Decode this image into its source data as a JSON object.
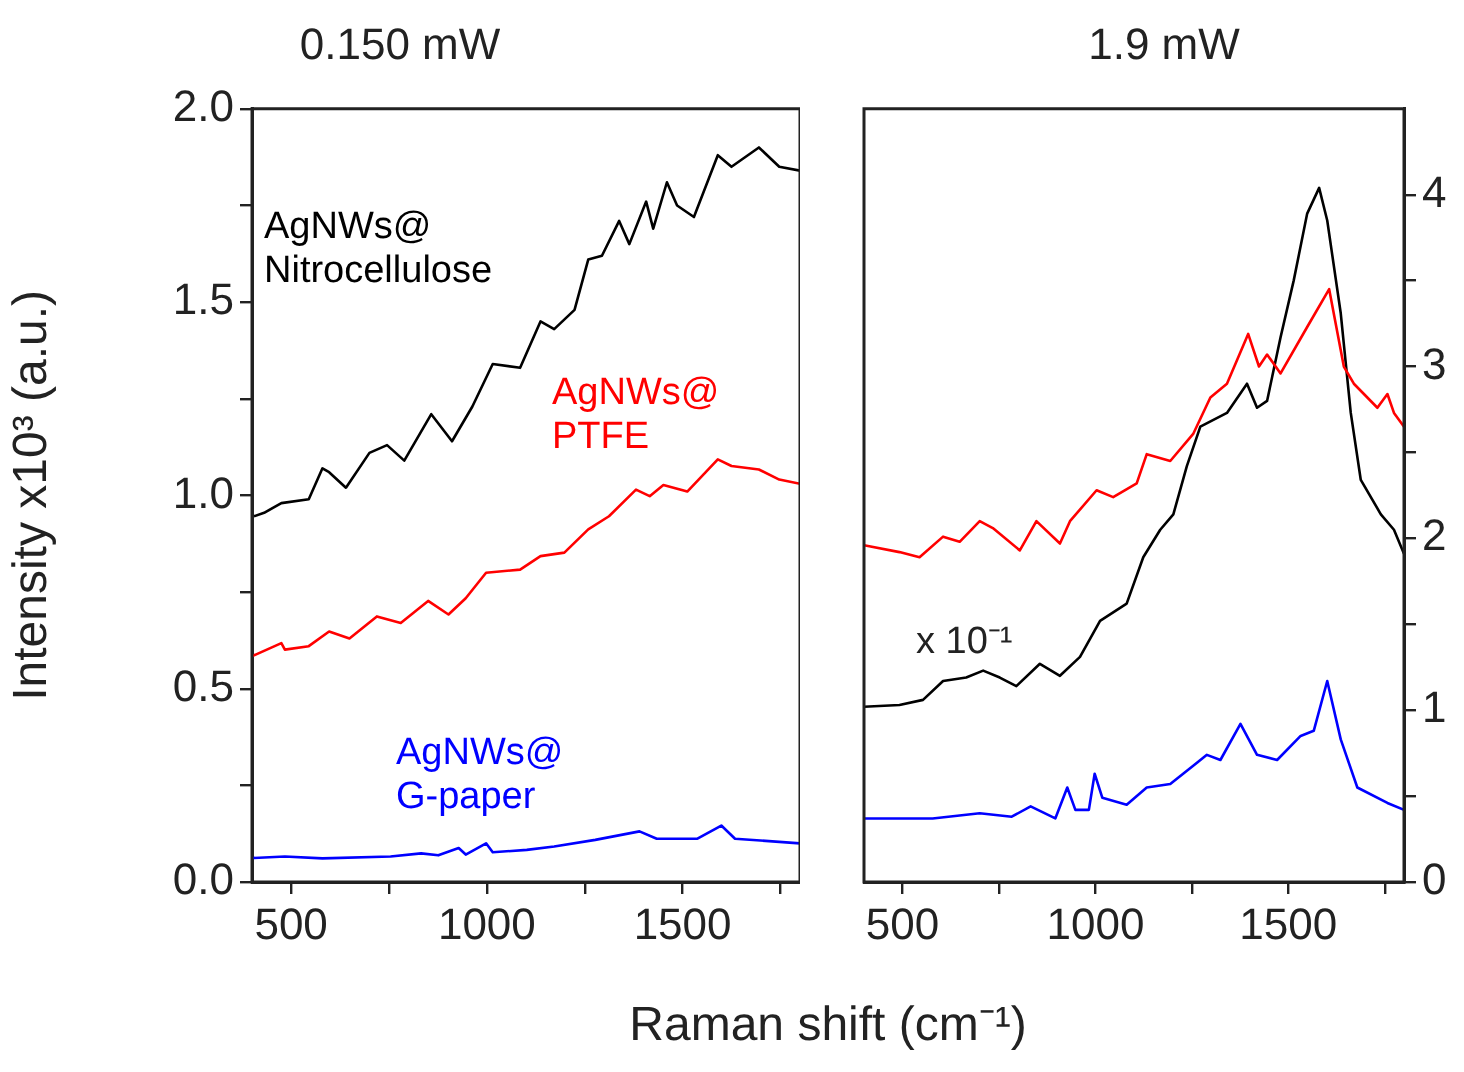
{
  "chart_data": [
    {
      "type": "line",
      "title": "0.150 mW",
      "ylabel": "Intensity x10³ (a.u.)",
      "xlabel": "Raman shift (cm⁻¹)",
      "xlim": [
        400,
        1800
      ],
      "xticks": [
        500,
        {
          "value": 750,
          "label": null
        },
        1000,
        {
          "value": 1250,
          "label": null
        },
        1500,
        {
          "value": 1750,
          "label": null
        }
      ],
      "ylim": [
        0,
        2
      ],
      "yticks": [
        {
          "value": 0,
          "label": "0.0"
        },
        {
          "value": 0.25,
          "label": null
        },
        {
          "value": 0.5,
          "label": "0.5"
        },
        {
          "value": 0.75,
          "label": null
        },
        {
          "value": 1,
          "label": "1.0"
        },
        {
          "value": 1.25,
          "label": null
        },
        {
          "value": 1.5,
          "label": "1.5"
        },
        {
          "value": 1.75,
          "label": null
        },
        {
          "value": 2,
          "label": "2.0"
        }
      ],
      "grid": false,
      "legend": false,
      "marker": "none",
      "line_style": "solid",
      "series": [
        {
          "name": "AgNWs@ Nitrocellulose",
          "color": "#000000",
          "x": [
            405,
            431,
            475,
            545,
            580,
            597,
            640,
            700,
            745,
            789,
            858,
            911,
            963,
            1015,
            1085,
            1137,
            1172,
            1224,
            1259,
            1294,
            1338,
            1364,
            1407,
            1425,
            1460,
            1486,
            1529,
            1590,
            1625,
            1695,
            1747,
            1800
          ],
          "values": [
            0.946,
            0.955,
            0.98,
            0.99,
            1.07,
            1.06,
            1.02,
            1.11,
            1.13,
            1.09,
            1.21,
            1.14,
            1.23,
            1.34,
            1.33,
            1.45,
            1.43,
            1.48,
            1.61,
            1.62,
            1.71,
            1.65,
            1.76,
            1.69,
            1.81,
            1.75,
            1.72,
            1.88,
            1.85,
            1.9,
            1.85,
            1.84
          ]
        },
        {
          "name": "AgNWs@ PTFE",
          "color": "#ff0000",
          "x": [
            400,
            475,
            484,
            545,
            597,
            649,
            719,
            780,
            850,
            902,
            946,
            998,
            1085,
            1137,
            1198,
            1259,
            1312,
            1381,
            1416,
            1451,
            1512,
            1590,
            1625,
            1695,
            1747,
            1800
          ],
          "values": [
            0.584,
            0.618,
            0.601,
            0.61,
            0.648,
            0.63,
            0.687,
            0.67,
            0.727,
            0.692,
            0.734,
            0.8,
            0.808,
            0.843,
            0.852,
            0.912,
            0.946,
            1.015,
            0.998,
            1.027,
            1.01,
            1.093,
            1.076,
            1.067,
            1.041,
            1.03
          ]
        },
        {
          "name": "AgNWs@ G-paper",
          "color": "#0000ff",
          "x": [
            400,
            484,
            580,
            754,
            832,
            876,
            928,
            946,
            998,
            1015,
            1102,
            1172,
            1277,
            1390,
            1434,
            1538,
            1599,
            1634,
            1800
          ],
          "values": [
            0.062,
            0.066,
            0.061,
            0.066,
            0.074,
            0.069,
            0.088,
            0.071,
            0.1,
            0.077,
            0.083,
            0.092,
            0.109,
            0.131,
            0.112,
            0.112,
            0.146,
            0.112,
            0.1
          ]
        }
      ]
    },
    {
      "type": "line",
      "title": "1.9 mW",
      "xlim": [
        400,
        1800
      ],
      "xticks": [
        500,
        {
          "value": 750,
          "label": null
        },
        1000,
        {
          "value": 1250,
          "label": null
        },
        1500,
        {
          "value": 1750,
          "label": null
        }
      ],
      "y2lim": [
        0,
        4.5
      ],
      "y2ticks": [
        0,
        {
          "value": 0.5,
          "label": null
        },
        1,
        {
          "value": 1.5,
          "label": null
        },
        2,
        {
          "value": 2.5,
          "label": null
        },
        3,
        {
          "value": 3.5,
          "label": null
        },
        4
      ],
      "grid": false,
      "legend": false,
      "marker": "none",
      "line_style": "solid",
      "annotations": [
        "x 10⁻¹"
      ],
      "series": [
        {
          "color": "#ff0000",
          "axis": "y2",
          "x": [
            400,
            492,
            544,
            605,
            648,
            700,
            734,
            804,
            847,
            908,
            934,
            1003,
            1046,
            1107,
            1133,
            1194,
            1254,
            1298,
            1341,
            1396,
            1424,
            1445,
            1480,
            1549,
            1606,
            1644,
            1670,
            1731,
            1757,
            1774,
            1800
          ],
          "values": [
            1.96,
            1.92,
            1.89,
            2.01,
            1.98,
            2.1,
            2.06,
            1.93,
            2.1,
            1.97,
            2.1,
            2.28,
            2.24,
            2.32,
            2.49,
            2.45,
            2.61,
            2.82,
            2.9,
            3.19,
            3.0,
            3.07,
            2.96,
            3.23,
            3.45,
            3.0,
            2.9,
            2.76,
            2.84,
            2.73,
            2.65
          ]
        },
        {
          "color": "#000000",
          "axis": "y2",
          "x": [
            400,
            492,
            553,
            605,
            665,
            709,
            752,
            795,
            856,
            908,
            960,
            1012,
            1081,
            1124,
            1168,
            1202,
            1237,
            1272,
            1341,
            1393,
            1419,
            1445,
            1480,
            1514,
            1549,
            1580,
            1601,
            1636,
            1662,
            1688,
            1740,
            1774,
            1800
          ],
          "values": [
            1.02,
            1.03,
            1.06,
            1.17,
            1.19,
            1.23,
            1.19,
            1.14,
            1.27,
            1.2,
            1.31,
            1.52,
            1.62,
            1.89,
            2.05,
            2.14,
            2.42,
            2.65,
            2.73,
            2.9,
            2.76,
            2.8,
            3.17,
            3.5,
            3.89,
            4.04,
            3.85,
            3.31,
            2.73,
            2.34,
            2.14,
            2.05,
            1.91
          ]
        },
        {
          "color": "#0000ff",
          "axis": "y2",
          "x": [
            400,
            578,
            700,
            783,
            832,
            896,
            927,
            948,
            983,
            998,
            1018,
            1081,
            1133,
            1194,
            1289,
            1324,
            1376,
            1419,
            1471,
            1532,
            1566,
            1601,
            1636,
            1679,
            1757,
            1800
          ],
          "values": [
            0.37,
            0.37,
            0.4,
            0.38,
            0.44,
            0.37,
            0.55,
            0.42,
            0.42,
            0.63,
            0.49,
            0.45,
            0.55,
            0.57,
            0.74,
            0.71,
            0.92,
            0.74,
            0.71,
            0.85,
            0.88,
            1.17,
            0.83,
            0.55,
            0.46,
            0.42
          ]
        }
      ]
    }
  ]
}
